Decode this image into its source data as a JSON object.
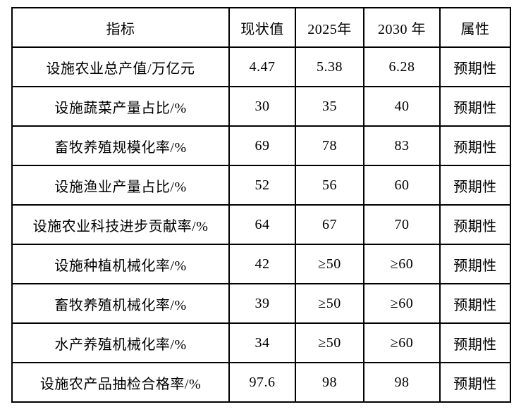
{
  "page": {
    "background_color": "#ffffff",
    "border_color": "#000000",
    "text_color": "#000000"
  },
  "table": {
    "columns": [
      {
        "key": "indicator",
        "label": "指标"
      },
      {
        "key": "current",
        "label": "现状值"
      },
      {
        "key": "y2025",
        "label": "2025年"
      },
      {
        "key": "y2030",
        "label": "2030 年"
      },
      {
        "key": "attribute",
        "label": "属性"
      }
    ],
    "rows": [
      {
        "indicator": "设施农业总产值/万亿元",
        "current": "4.47",
        "y2025": "5.38",
        "y2030": "6.28",
        "attribute": "预期性"
      },
      {
        "indicator": "设施蔬菜产量占比/%",
        "current": "30",
        "y2025": "35",
        "y2030": "40",
        "attribute": "预期性"
      },
      {
        "indicator": "畜牧养殖规模化率/%",
        "current": "69",
        "y2025": "78",
        "y2030": "83",
        "attribute": "预期性"
      },
      {
        "indicator": "设施渔业产量占比/%",
        "current": "52",
        "y2025": "56",
        "y2030": "60",
        "attribute": "预期性"
      },
      {
        "indicator": "设施农业科技进步贡献率/%",
        "current": "64",
        "y2025": "67",
        "y2030": "70",
        "attribute": "预期性"
      },
      {
        "indicator": "设施种植机械化率/%",
        "current": "42",
        "y2025": "≥50",
        "y2030": "≥60",
        "attribute": "预期性"
      },
      {
        "indicator": "畜牧养殖机械化率/%",
        "current": "39",
        "y2025": "≥50",
        "y2030": "≥60",
        "attribute": "预期性"
      },
      {
        "indicator": "水产养殖机械化率/%",
        "current": "34",
        "y2025": "≥50",
        "y2030": "≥60",
        "attribute": "预期性"
      },
      {
        "indicator": "设施农产品抽检合格率/%",
        "current": "97.6",
        "y2025": "98",
        "y2030": "98",
        "attribute": "预期性"
      }
    ]
  }
}
